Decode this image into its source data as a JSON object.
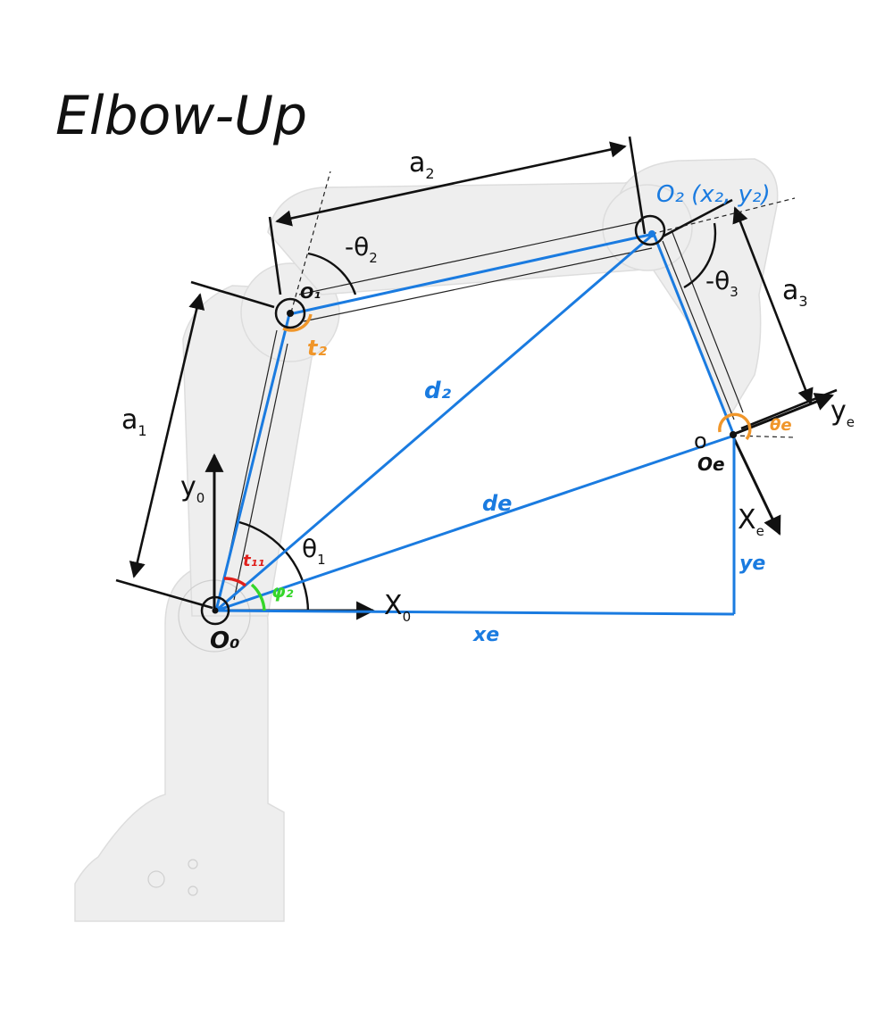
{
  "title": "Elbow-Up",
  "labels": {
    "a1": "a",
    "a1_sub": "1",
    "a2": "a",
    "a2_sub": "2",
    "a3": "a",
    "a3_sub": "3",
    "theta1": "θ",
    "theta1_sub": "1",
    "neg_theta2": "-θ",
    "neg_theta2_sub": "2",
    "neg_theta3": "-θ",
    "neg_theta3_sub": "3",
    "x0": "X",
    "x0_sub": "0",
    "y0": "y",
    "y0_sub": "0",
    "xe": "X",
    "xe_sub": "e",
    "ye": "y",
    "ye_sub": "e",
    "o_e_small": "o"
  },
  "handwritten": {
    "O0": "O₀",
    "O1": "O₁",
    "O2": "O₂ (x₂, y₂)",
    "Oe": "Oe",
    "d2": "d₂",
    "de": "de",
    "xe": "xe",
    "ye": "ye",
    "t11": "t₁₁",
    "phi2": "φ₂",
    "t2": "t₂",
    "theta_e": "θe"
  },
  "colors": {
    "blue": "#1a7be0",
    "black": "#111111",
    "orange": "#f0962a",
    "red": "#e0201c",
    "green": "#35d62a",
    "robot_fill": "#ececec",
    "robot_stroke": "#d6d6d6"
  },
  "icons": [
    "joint-o0-icon",
    "joint-o1-icon",
    "joint-o2-icon",
    "joint-oe-icon"
  ]
}
